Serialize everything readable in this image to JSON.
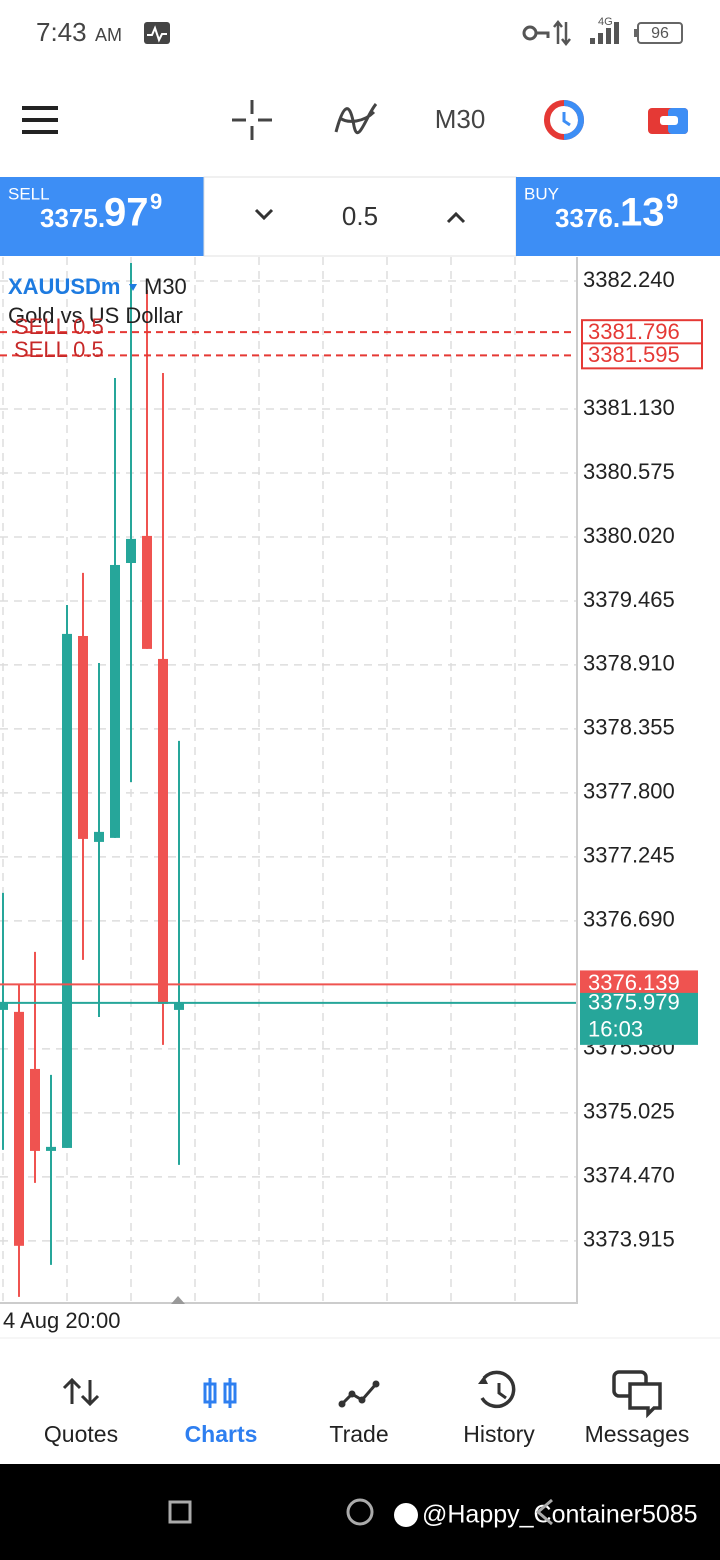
{
  "status_bar": {
    "time": "7:43",
    "ampm": "AM",
    "network": "4G",
    "battery": "96"
  },
  "toolbar": {
    "timeframe": "M30"
  },
  "trade_panel": {
    "sell_label": "SELL",
    "sell_price_main": "3375.",
    "sell_price_big": "97",
    "sell_price_sup": "9",
    "volume": "0.5",
    "buy_label": "BUY",
    "buy_price_main": "3376.",
    "buy_price_big": "13",
    "buy_price_sup": "9"
  },
  "chart_data": {
    "type": "candlestick",
    "symbol": "XAUUSDm",
    "timeframe": "M30",
    "description": "Gold vs US Dollar",
    "x_label": "4 Aug 20:00",
    "up_color": "#26a69a",
    "down_color": "#ef5350",
    "open": [
      3375.918,
      3375.901,
      3375.406,
      3374.695,
      3374.721,
      3379.161,
      3377.375,
      3377.41,
      3379.794,
      3380.029,
      3378.962,
      3375.918
    ],
    "high": [
      3376.933,
      3376.135,
      3376.421,
      3375.354,
      3379.43,
      3379.708,
      3378.927,
      3381.399,
      3382.396,
      3382.162,
      3381.442,
      3378.251
    ],
    "low": [
      3374.704,
      3373.429,
      3374.418,
      3373.707,
      3374.721,
      3376.352,
      3375.857,
      3377.41,
      3377.895,
      3379.049,
      3375.615,
      3374.574
    ],
    "close": [
      3375.979,
      3373.872,
      3374.695,
      3374.73,
      3379.179,
      3377.401,
      3377.462,
      3379.777,
      3380.003,
      3379.049,
      3375.97,
      3375.979
    ],
    "ylim": [
      3373.376,
      3382.448
    ],
    "yticks": [
      {
        "value": 3382.24,
        "label": "3382.240"
      },
      {
        "value": 3381.13,
        "label": "3381.130"
      },
      3380.575,
      {
        "value": 3380.02,
        "label": "3380.020"
      },
      3379.465,
      {
        "value": 3378.91,
        "label": "3378.910"
      },
      3378.355,
      {
        "value": 3377.8,
        "label": "3377.800"
      },
      3377.245,
      {
        "value": 3376.69,
        "label": "3376.690"
      },
      {
        "value": 3375.58,
        "label": "3375.580"
      },
      3375.025,
      {
        "value": 3374.47,
        "label": "3374.470"
      },
      3373.915
    ],
    "grid": true,
    "order_lines": [
      {
        "label": "SELL 0.5",
        "value": 3381.796
      },
      {
        "label": "SELL 0.5",
        "value": 3381.595
      }
    ],
    "ask": 3376.139,
    "ask_color": "#ef5350",
    "bid": 3375.979,
    "bid_color": "#26a69a",
    "bid_time": "16:03"
  },
  "nav": {
    "items": [
      "Quotes",
      "Charts",
      "Trade",
      "History",
      "Messages"
    ],
    "active": "Charts"
  },
  "system_bar": {
    "watermark": "@Happy_Container5085"
  }
}
